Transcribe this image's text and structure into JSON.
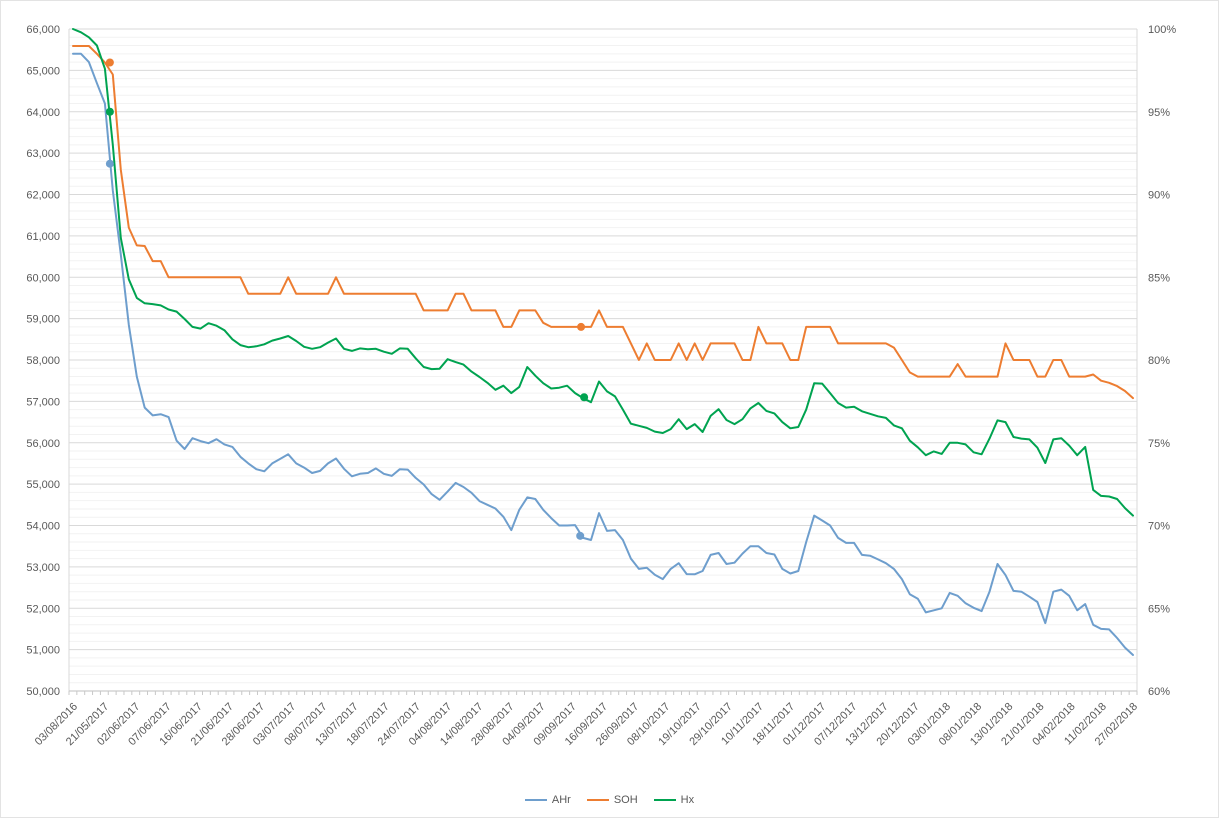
{
  "colors": {
    "axis_text": "#595959",
    "grid_major": "#d9d9d9",
    "grid_minor": "#f2f2f2",
    "axis_line": "#bfbfbf",
    "tick": "#c8c8c8"
  },
  "chart_data": {
    "type": "line",
    "title": "",
    "legend_position": "bottom",
    "grid": "horizontal major + minor, no vertical gridlines",
    "left_axis": {
      "min": 50000,
      "max": 66000,
      "major_step": 1000,
      "minor_step": 200,
      "labels": [
        "66,000",
        "65,000",
        "64,000",
        "63,000",
        "62,000",
        "61,000",
        "60,000",
        "59,000",
        "58,000",
        "57,000",
        "56,000",
        "55,000",
        "54,000",
        "53,000",
        "52,000",
        "51,000",
        "50,000"
      ]
    },
    "right_axis": {
      "min_pct": 60,
      "max_pct": 100,
      "step_pct": 5,
      "labels": [
        "100%",
        "95%",
        "90%",
        "85%",
        "80%",
        "75%",
        "70%",
        "65%",
        "60%"
      ]
    },
    "x_axis": {
      "labels": [
        "03/08/2016",
        "21/05/2017",
        "02/06/2017",
        "07/06/2017",
        "16/06/2017",
        "21/06/2017",
        "28/06/2017",
        "03/07/2017",
        "08/07/2017",
        "13/07/2017",
        "18/07/2017",
        "24/07/2017",
        "04/08/2017",
        "14/08/2017",
        "28/08/2017",
        "04/09/2017",
        "09/09/2017",
        "16/09/2017",
        "26/09/2017",
        "08/10/2017",
        "19/10/2017",
        "29/10/2017",
        "10/11/2017",
        "18/11/2017",
        "01/12/2017",
        "07/12/2017",
        "13/12/2017",
        "20/12/2017",
        "03/01/2018",
        "08/01/2018",
        "13/01/2018",
        "21/01/2018",
        "04/02/2018",
        "11/02/2018",
        "27/02/2018"
      ],
      "minor_ticks_between_labels": 4
    },
    "series": [
      {
        "name": "AHr",
        "color": "#6e9ecd",
        "values": [
          65400,
          65400,
          65200,
          64690,
          64200,
          62100,
          60550,
          58850,
          57600,
          56850,
          56660,
          56690,
          56620,
          56050,
          55850,
          56110,
          56040,
          55990,
          56085,
          55960,
          55900,
          55660,
          55500,
          55360,
          55310,
          55500,
          55610,
          55720,
          55500,
          55400,
          55270,
          55320,
          55500,
          55620,
          55370,
          55190,
          55250,
          55270,
          55380,
          55250,
          55200,
          55360,
          55350,
          55150,
          54990,
          54760,
          54620,
          54820,
          55030,
          54930,
          54790,
          54590,
          54500,
          54410,
          54210,
          53890,
          54380,
          54680,
          54640,
          54380,
          54180,
          54000,
          54000,
          54010,
          53700,
          53650,
          54300,
          53870,
          53890,
          53650,
          53200,
          52950,
          52980,
          52810,
          52705,
          52950,
          53090,
          52825,
          52820,
          52900,
          53290,
          53335,
          53070,
          53100,
          53320,
          53500,
          53500,
          53335,
          53300,
          52950,
          52840,
          52900,
          53600,
          54240,
          54120,
          54000,
          53700,
          53580,
          53580,
          53290,
          53270,
          53180,
          53090,
          52950,
          52705,
          52340,
          52230,
          51900,
          51950,
          52000,
          52370,
          52300,
          52120,
          52010,
          51930,
          52400,
          53070,
          52800,
          52420,
          52400,
          52280,
          52150,
          51640,
          52400,
          52450,
          52300,
          51950,
          52100,
          51600,
          51500,
          51490,
          51280,
          51050,
          50870
        ]
      },
      {
        "name": "SOH",
        "color": "#ed7d31",
        "values": [
          65590,
          65590,
          65590,
          65400,
          65190,
          64900,
          62600,
          61200,
          60770,
          60755,
          60390,
          60390,
          60000,
          60000,
          60000,
          60000,
          60000,
          60000,
          60000,
          60000,
          60000,
          60000,
          59600,
          59600,
          59600,
          59600,
          59600,
          60000,
          59600,
          59600,
          59600,
          59600,
          59600,
          60000,
          59600,
          59600,
          59600,
          59600,
          59600,
          59600,
          59600,
          59600,
          59600,
          59600,
          59200,
          59200,
          59200,
          59200,
          59600,
          59600,
          59200,
          59200,
          59200,
          59200,
          58800,
          58800,
          59200,
          59200,
          59200,
          58900,
          58800,
          58800,
          58800,
          58800,
          58800,
          58800,
          59200,
          58800,
          58800,
          58800,
          58400,
          58000,
          58400,
          58000,
          58000,
          58000,
          58400,
          58000,
          58400,
          58000,
          58400,
          58400,
          58400,
          58400,
          58000,
          58000,
          58800,
          58400,
          58400,
          58400,
          58000,
          58000,
          58800,
          58800,
          58800,
          58800,
          58400,
          58400,
          58400,
          58400,
          58400,
          58400,
          58400,
          58300,
          58000,
          57700,
          57600,
          57600,
          57600,
          57600,
          57600,
          57900,
          57600,
          57600,
          57600,
          57600,
          57600,
          58400,
          58000,
          58000,
          58000,
          57600,
          57600,
          58000,
          58000,
          57600,
          57600,
          57600,
          57650,
          57500,
          57450,
          57370,
          57250,
          57080
        ]
      },
      {
        "name": "Hx",
        "color": "#00a350",
        "values": [
          66000,
          65920,
          65800,
          65600,
          65040,
          63200,
          60950,
          59950,
          59500,
          59370,
          59350,
          59320,
          59220,
          59170,
          58990,
          58800,
          58760,
          58890,
          58830,
          58720,
          58500,
          58360,
          58310,
          58330,
          58380,
          58470,
          58520,
          58580,
          58460,
          58320,
          58270,
          58310,
          58420,
          58520,
          58270,
          58220,
          58280,
          58260,
          58270,
          58200,
          58150,
          58280,
          58270,
          58040,
          57830,
          57780,
          57790,
          58020,
          57950,
          57890,
          57720,
          57590,
          57450,
          57280,
          57380,
          57200,
          57350,
          57830,
          57620,
          57440,
          57310,
          57330,
          57380,
          57200,
          57080,
          56980,
          57480,
          57240,
          57120,
          56800,
          56460,
          56410,
          56360,
          56270,
          56235,
          56330,
          56570,
          56330,
          56450,
          56260,
          56650,
          56810,
          56550,
          56450,
          56570,
          56830,
          56960,
          56770,
          56710,
          56500,
          56350,
          56380,
          56800,
          57440,
          57430,
          57200,
          56960,
          56850,
          56870,
          56760,
          56700,
          56640,
          56600,
          56420,
          56350,
          56050,
          55890,
          55700,
          55790,
          55730,
          56000,
          56000,
          55960,
          55770,
          55720,
          56100,
          56540,
          56500,
          56140,
          56100,
          56080,
          55880,
          55510,
          56080,
          56110,
          55930,
          55700,
          55900,
          54860,
          54715,
          54700,
          54640,
          54420,
          54240
        ]
      }
    ],
    "markers": [
      {
        "series": 0,
        "x_frac": 0.0348,
        "value": 62744
      },
      {
        "series": 1,
        "x_frac": 0.0348,
        "value": 65190
      },
      {
        "series": 2,
        "x_frac": 0.0348,
        "value": 64000
      },
      {
        "series": 0,
        "x_frac": 0.4785,
        "value": 53750
      },
      {
        "series": 1,
        "x_frac": 0.4793,
        "value": 58800
      },
      {
        "series": 2,
        "x_frac": 0.4822,
        "value": 57100
      }
    ]
  }
}
